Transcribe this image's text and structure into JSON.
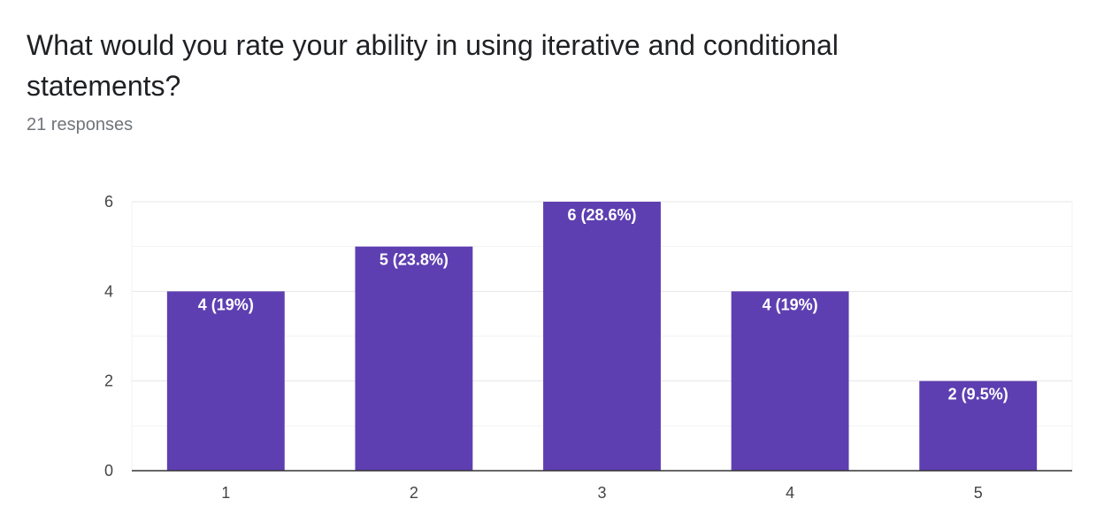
{
  "question": {
    "title": "What would you rate your ability in using iterative and conditional statements?",
    "responses_label": "21 responses"
  },
  "colors": {
    "bar": "#5e3fb1",
    "grid": "#e6e6e6",
    "minor_grid": "#f2f2f2",
    "axis": "#333333"
  },
  "chart_data": {
    "type": "bar",
    "categories": [
      "1",
      "2",
      "3",
      "4",
      "5"
    ],
    "values": [
      4,
      5,
      6,
      4,
      2
    ],
    "data_labels": [
      "4 (19%)",
      "5 (23.8%)",
      "6 (28.6%)",
      "4 (19%)",
      "2 (9.5%)"
    ],
    "yticks": [
      0,
      2,
      4,
      6
    ],
    "ylim": [
      0,
      6
    ],
    "grid": true,
    "legend": "none"
  }
}
